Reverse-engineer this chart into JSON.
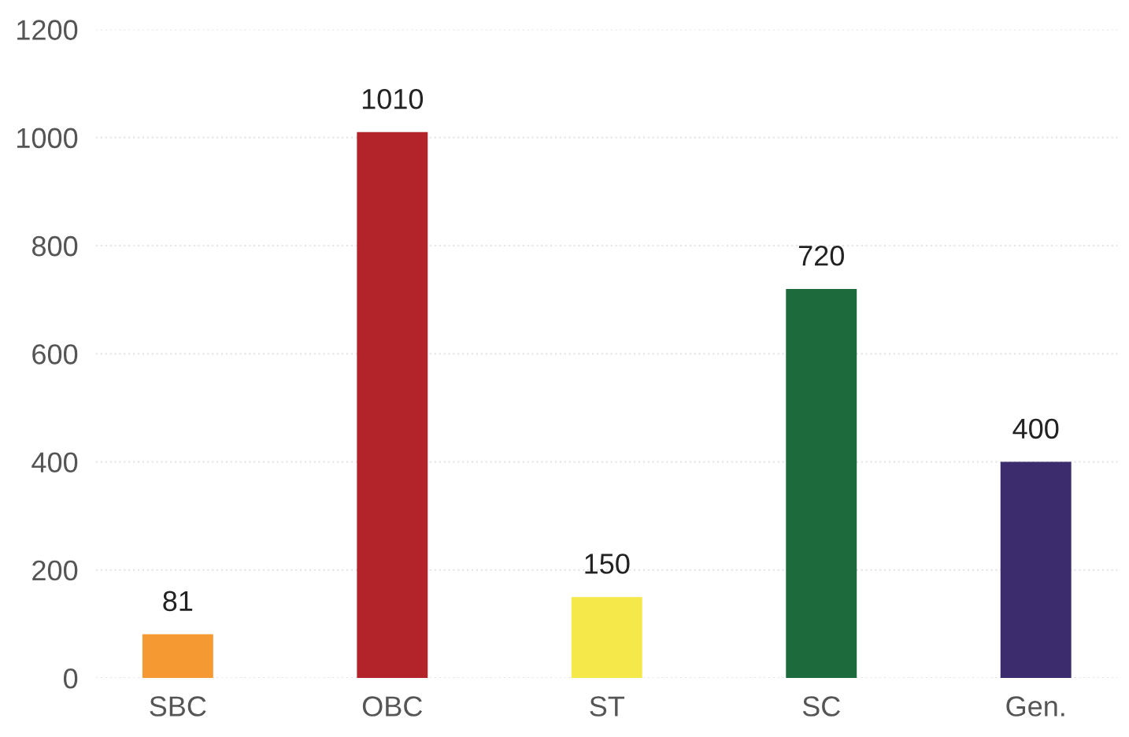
{
  "chart_data": {
    "type": "bar",
    "categories": [
      "SBC",
      "OBC",
      "ST",
      "SC",
      "Gen."
    ],
    "values": [
      81,
      1010,
      150,
      720,
      400
    ],
    "colors": [
      "#f59a32",
      "#b3242a",
      "#f5e84a",
      "#1d6b3c",
      "#3c2c6e"
    ],
    "ylim": [
      0,
      1200
    ],
    "yticks": [
      0,
      200,
      400,
      600,
      800,
      1000,
      1200
    ],
    "grid": "y",
    "data_labels": true
  }
}
